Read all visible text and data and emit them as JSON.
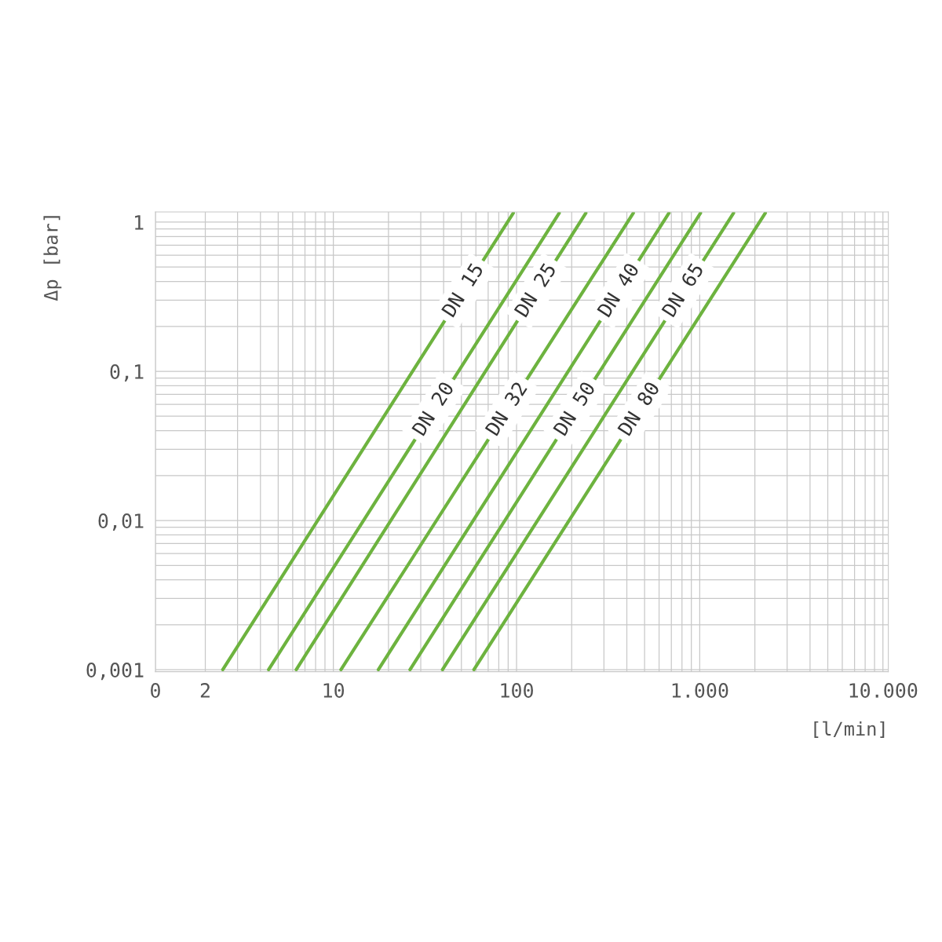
{
  "chart_data": {
    "type": "line",
    "xlabel": "[l/min]",
    "ylabel": "Δp [bar]",
    "log": "xy",
    "grid": true,
    "legend": false,
    "marker": "none",
    "line_style": "solid",
    "xlim": [
      0,
      10700
    ],
    "ylim": [
      0.00097,
      1.17
    ],
    "xticks": [
      0,
      2,
      10,
      100,
      {
        "value": 1000,
        "label": "1.000"
      },
      {
        "value": 10000,
        "label": "10.000"
      }
    ],
    "yticks": [
      {
        "value": 0.001,
        "label": "0,001"
      },
      {
        "value": 0.01,
        "label": "0,01"
      },
      {
        "value": 0.1,
        "label": "0,1"
      },
      1
    ],
    "series": [
      {
        "name": "DN 15",
        "color": "#6db33f",
        "x": [
          2.49,
          96
        ],
        "values": [
          0.001,
          1.15
        ]
      },
      {
        "name": "DN 20",
        "color": "#6db33f",
        "x": [
          4.43,
          171
        ],
        "values": [
          0.001,
          1.15
        ]
      },
      {
        "name": "DN 25",
        "color": "#6db33f",
        "x": [
          6.27,
          239
        ],
        "values": [
          0.001,
          1.15
        ]
      },
      {
        "name": "DN 32",
        "color": "#6db33f",
        "x": [
          11.0,
          434
        ],
        "values": [
          0.001,
          1.15
        ]
      },
      {
        "name": "DN 40",
        "color": "#6db33f",
        "x": [
          17.6,
          679
        ],
        "values": [
          0.001,
          1.15
        ]
      },
      {
        "name": "DN 50",
        "color": "#6db33f",
        "x": [
          26.2,
          1010
        ],
        "values": [
          0.001,
          1.15
        ]
      },
      {
        "name": "DN 65",
        "color": "#6db33f",
        "x": [
          39.4,
          1530
        ],
        "values": [
          0.001,
          1.15
        ]
      },
      {
        "name": "DN 80",
        "color": "#6db33f",
        "x": [
          58.5,
          2280
        ],
        "values": [
          0.001,
          1.15
        ]
      }
    ]
  }
}
